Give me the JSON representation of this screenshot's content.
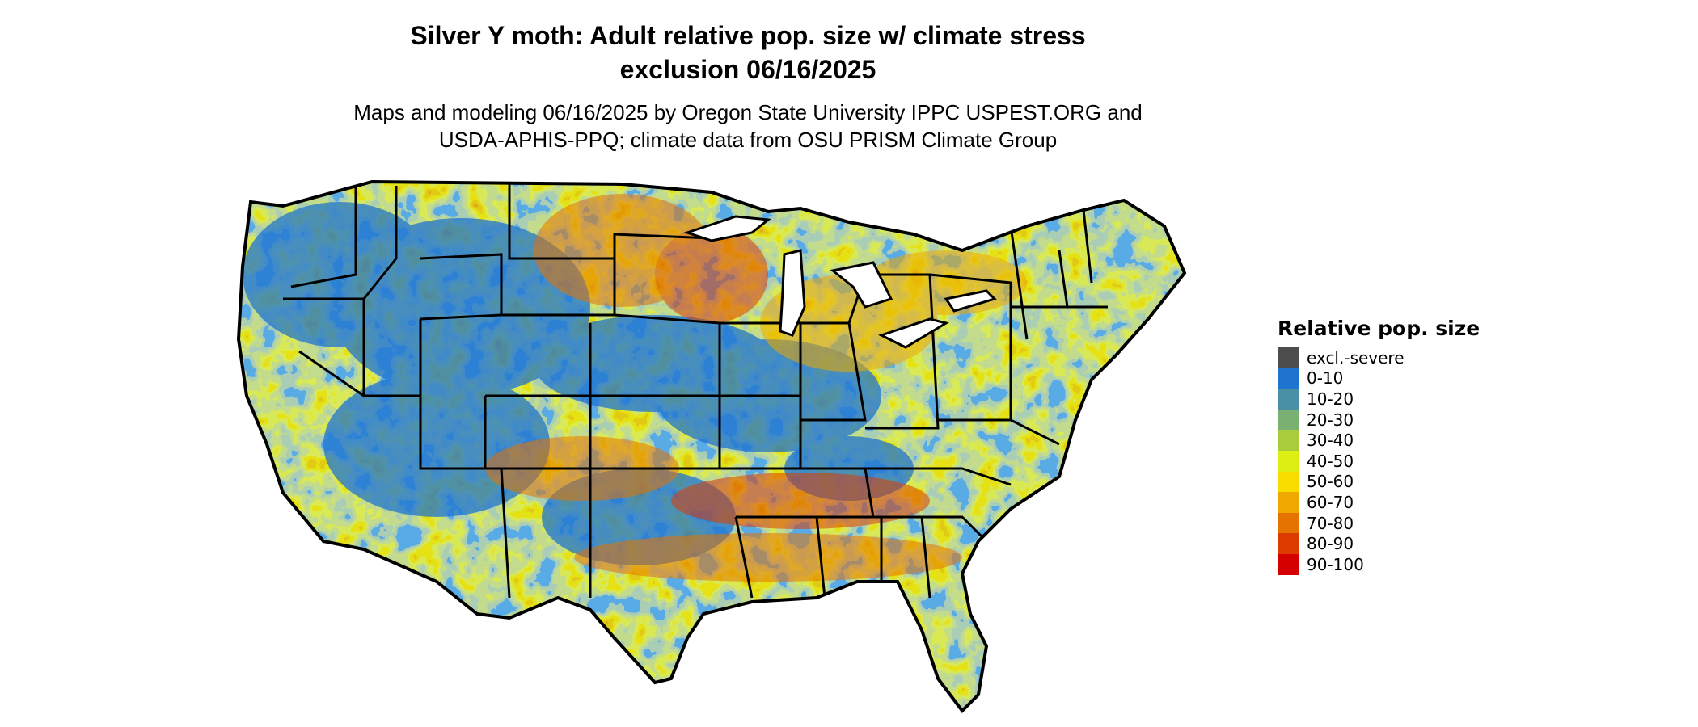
{
  "header": {
    "title_line1": "Silver Y moth: Adult relative pop. size w/ climate stress",
    "title_line2": "exclusion 06/16/2025",
    "subtitle_line1": "Maps and modeling 06/16/2025 by Oregon State University IPPC USPEST.ORG and",
    "subtitle_line2": "USDA-APHIS-PPQ; climate data from OSU PRISM Climate Group"
  },
  "legend": {
    "title": "Relative pop. size",
    "items": [
      {
        "label": "excl.-severe",
        "color": "#4d4d4d"
      },
      {
        "label": "0-10",
        "color": "#1f74cf"
      },
      {
        "label": "10-20",
        "color": "#4a90a4"
      },
      {
        "label": "20-30",
        "color": "#7ab072"
      },
      {
        "label": "30-40",
        "color": "#a8cc3c"
      },
      {
        "label": "40-50",
        "color": "#dcee12"
      },
      {
        "label": "50-60",
        "color": "#f7dc00"
      },
      {
        "label": "60-70",
        "color": "#eea800"
      },
      {
        "label": "70-80",
        "color": "#e57300"
      },
      {
        "label": "80-90",
        "color": "#dd3c00"
      },
      {
        "label": "90-100",
        "color": "#d40000"
      }
    ]
  },
  "map": {
    "region": "contiguous United States",
    "border_color": "#000000",
    "base_color": "#1f74cf"
  }
}
